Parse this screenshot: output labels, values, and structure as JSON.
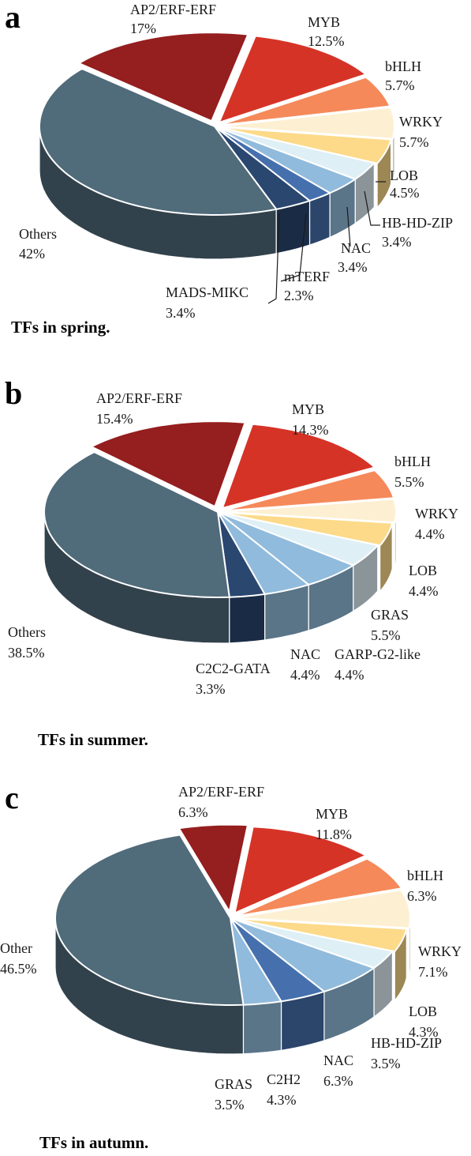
{
  "palette": {
    "AP2/ERF-ERF": "#951e1e",
    "MYB": "#d63327",
    "bHLH": "#f5895a",
    "WRKY": "#fdf0d2",
    "LOB": "#fcda89",
    "HB-HD-ZIP": "#dfeff6",
    "NAC": "#91bbdc",
    "mTERF": "#4670ad",
    "MADS-MIKC": "#2a4770",
    "GRAS": "#91bbdc",
    "GARP-G2-like": "#dfeff6",
    "C2C2-GATA": "#2a4770",
    "C2H2": "#4670ad",
    "Others": "#506b7a",
    "Other": "#506b7a"
  },
  "panels": [
    {
      "letter": "a",
      "caption": "TFs in spring.",
      "chart_data": {
        "type": "pie",
        "title": "",
        "slices": [
          {
            "name": "MYB",
            "pct_label": "12.5%",
            "value": 12.5
          },
          {
            "name": "bHLH",
            "pct_label": "5.7%",
            "value": 5.7
          },
          {
            "name": "WRKY",
            "pct_label": "5.7%",
            "value": 5.7
          },
          {
            "name": "LOB",
            "pct_label": "4.5%",
            "value": 4.5
          },
          {
            "name": "HB-HD-ZIP",
            "pct_label": "3.4%",
            "value": 3.4
          },
          {
            "name": "NAC",
            "pct_label": "3.4%",
            "value": 3.4
          },
          {
            "name": "mTERF",
            "pct_label": "2.3%",
            "value": 2.3
          },
          {
            "name": "MADS-MIKC",
            "pct_label": "3.4%",
            "value": 3.4
          },
          {
            "name": "Others",
            "pct_label": "42%",
            "value": 42
          },
          {
            "name": "AP2/ERF-ERF",
            "pct_label": "17%",
            "value": 17
          }
        ]
      }
    },
    {
      "letter": "b",
      "caption": "TFs in summer.",
      "chart_data": {
        "type": "pie",
        "title": "",
        "slices": [
          {
            "name": "MYB",
            "pct_label": "14.3%",
            "value": 14.3
          },
          {
            "name": "bHLH",
            "pct_label": "5.5%",
            "value": 5.5
          },
          {
            "name": "WRKY",
            "pct_label": "4.4%",
            "value": 4.4
          },
          {
            "name": "LOB",
            "pct_label": "4.4%",
            "value": 4.4
          },
          {
            "name": "GARP-G2-like",
            "pct_label": "4.4%",
            "value": 4.4
          },
          {
            "name": "GRAS",
            "pct_label": "5.5%",
            "value": 5.5
          },
          {
            "name": "NAC",
            "pct_label": "4.4%",
            "value": 4.4
          },
          {
            "name": "C2C2-GATA",
            "pct_label": "3.3%",
            "value": 3.3
          },
          {
            "name": "Others",
            "pct_label": "38.5%",
            "value": 38.5
          },
          {
            "name": "AP2/ERF-ERF",
            "pct_label": "15.4%",
            "value": 15.4
          }
        ]
      }
    },
    {
      "letter": "c",
      "caption": "TFs in autumn.",
      "chart_data": {
        "type": "pie",
        "title": "",
        "slices": [
          {
            "name": "MYB",
            "pct_label": "11.8%",
            "value": 11.8
          },
          {
            "name": "bHLH",
            "pct_label": "6.3%",
            "value": 6.3
          },
          {
            "name": "WRKY",
            "pct_label": "7.1%",
            "value": 7.1
          },
          {
            "name": "LOB",
            "pct_label": "4.3%",
            "value": 4.3
          },
          {
            "name": "HB-HD-ZIP",
            "pct_label": "3.5%",
            "value": 3.5
          },
          {
            "name": "NAC",
            "pct_label": "6.3%",
            "value": 6.3
          },
          {
            "name": "C2H2",
            "pct_label": "4.3%",
            "value": 4.3
          },
          {
            "name": "GRAS",
            "pct_label": "3.5%",
            "value": 3.5
          },
          {
            "name": "Other",
            "pct_label": "46.5%",
            "value": 46.5
          },
          {
            "name": "AP2/ERF-ERF",
            "pct_label": "6.3%",
            "value": 6.3
          }
        ]
      }
    }
  ]
}
